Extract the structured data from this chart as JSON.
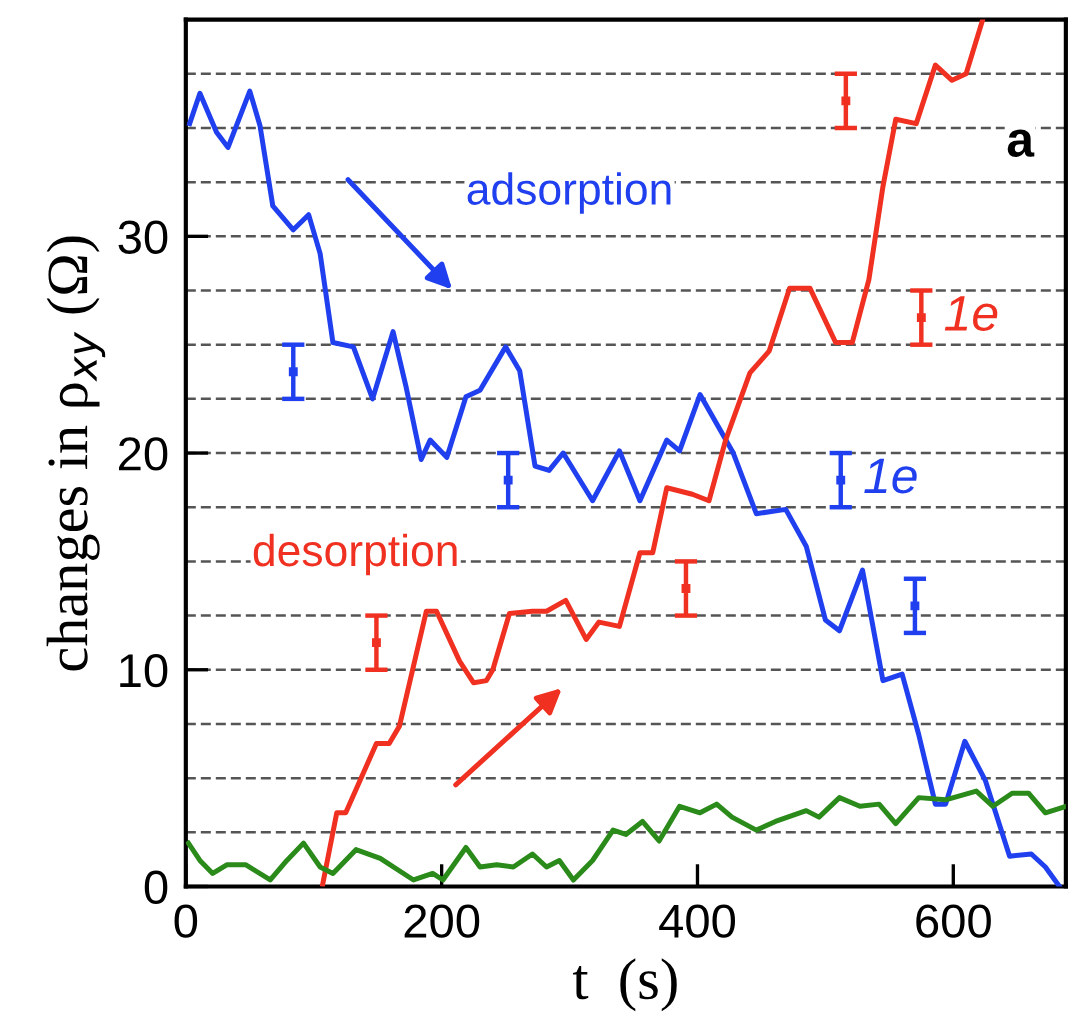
{
  "chart_data": {
    "type": "line",
    "xlabel": "t  (s)",
    "ylabel": "changes in ρ$_{xy}$ (Ω)",
    "xlim": [
      0,
      688
    ],
    "ylim": [
      0,
      40
    ],
    "xticks": [
      0,
      200,
      400,
      600
    ],
    "yticks": [
      0,
      10,
      20,
      30
    ],
    "grid": false,
    "marker": "none",
    "line_style": "solid",
    "series": [
      {
        "color": "#2040f0",
        "x": [
          3,
          11,
          24,
          33,
          50,
          58,
          68,
          84,
          96,
          105,
          115,
          131,
          146,
          162,
          172,
          184,
          191,
          204,
          219,
          230,
          250,
          261,
          273,
          284,
          295,
          318,
          339,
          355,
          376,
          386,
          402,
          428,
          446,
          469,
          485,
          500,
          511,
          529,
          545,
          560,
          573,
          586,
          594,
          609,
          625,
          644,
          661,
          672,
          683
        ],
        "values": [
          35.2,
          36.6,
          34.8,
          34.1,
          36.7,
          35.1,
          31.4,
          30.3,
          31.0,
          29.2,
          25.1,
          24.9,
          22.5,
          25.6,
          23.1,
          19.7,
          20.6,
          19.8,
          22.6,
          22.9,
          24.9,
          23.8,
          19.4,
          19.2,
          20.0,
          17.8,
          20.1,
          17.8,
          20.6,
          20.1,
          22.7,
          20.0,
          17.2,
          17.4,
          15.7,
          12.3,
          11.8,
          14.6,
          9.5,
          9.8,
          7.0,
          3.8,
          3.8,
          6.7,
          4.9,
          1.4,
          1.5,
          0.9,
          0
        ]
      },
      {
        "color": "#f03020",
        "x": [
          107,
          118,
          125,
          149,
          159,
          167,
          188,
          196,
          214,
          225,
          235,
          240,
          253,
          271,
          282,
          297,
          313,
          323,
          339,
          355,
          365,
          376,
          396,
          409,
          422,
          441,
          456,
          472,
          488,
          508,
          521,
          534,
          545,
          555,
          571,
          586,
          599,
          610,
          623
        ],
        "values": [
          0.1,
          3.4,
          3.4,
          6.6,
          6.6,
          7.4,
          12.7,
          12.7,
          10.4,
          9.4,
          9.5,
          10.0,
          12.6,
          12.7,
          12.7,
          13.2,
          11.4,
          12.2,
          12.0,
          15.4,
          15.4,
          18.4,
          18.1,
          17.8,
          20.6,
          23.7,
          24.7,
          27.6,
          27.6,
          25.1,
          25.1,
          28.0,
          32.3,
          35.4,
          35.2,
          37.9,
          37.2,
          37.5,
          40.0
        ]
      },
      {
        "color": "#2a8a1a",
        "x": [
          2,
          11,
          21,
          32,
          47,
          66,
          79,
          92,
          105,
          115,
          133,
          152,
          178,
          193,
          201,
          219,
          230,
          243,
          256,
          271,
          282,
          292,
          303,
          318,
          334,
          344,
          357,
          370,
          386,
          402,
          415,
          427,
          446,
          461,
          485,
          495,
          511,
          527,
          542,
          555,
          573,
          594,
          618,
          631,
          646,
          659,
          672,
          688
        ],
        "values": [
          2.0,
          1.2,
          0.6,
          1.0,
          1.0,
          0.3,
          1.2,
          2.0,
          0.9,
          0.6,
          1.7,
          1.3,
          0.3,
          0.6,
          0.3,
          1.8,
          0.9,
          1.0,
          0.9,
          1.5,
          0.9,
          1.2,
          0.3,
          1.2,
          2.6,
          2.4,
          3.0,
          2.1,
          3.7,
          3.4,
          3.8,
          3.2,
          2.6,
          3.0,
          3.5,
          3.2,
          4.1,
          3.7,
          3.8,
          2.9,
          4.1,
          4.0,
          4.4,
          3.7,
          4.3,
          4.3,
          3.4,
          3.7
        ]
      },
      {
        "type": "scatter",
        "marker": "square",
        "color": "#2040f0",
        "x": [
          84,
          252,
          512,
          570
        ],
        "values": [
          23.75,
          18.75,
          18.75,
          12.95
        ],
        "errors": [
          1.25,
          1.25,
          1.25,
          1.25
        ]
      },
      {
        "type": "scatter",
        "marker": "square",
        "color": "#f03020",
        "x": [
          149,
          391,
          516,
          575
        ],
        "values": [
          11.25,
          13.75,
          36.25,
          26.25
        ],
        "errors": [
          1.25,
          1.25,
          1.25,
          1.25
        ]
      }
    ],
    "ref_lines": [
      {
        "axis": "y",
        "value": 2.5,
        "line_style": "dashed",
        "color": "#555555"
      },
      {
        "axis": "y",
        "value": 5,
        "line_style": "dashed",
        "color": "#555555"
      },
      {
        "axis": "y",
        "value": 7.5,
        "line_style": "dashed",
        "color": "#555555"
      },
      {
        "axis": "y",
        "value": 10,
        "line_style": "dashed",
        "color": "#555555"
      },
      {
        "axis": "y",
        "value": 12.5,
        "line_style": "dashed",
        "color": "#555555"
      },
      {
        "axis": "y",
        "value": 15,
        "line_style": "dashed",
        "color": "#555555"
      },
      {
        "axis": "y",
        "value": 17.5,
        "line_style": "dashed",
        "color": "#555555"
      },
      {
        "axis": "y",
        "value": 20,
        "line_style": "dashed",
        "color": "#555555"
      },
      {
        "axis": "y",
        "value": 22.5,
        "line_style": "dashed",
        "color": "#555555"
      },
      {
        "axis": "y",
        "value": 25,
        "line_style": "dashed",
        "color": "#555555"
      },
      {
        "axis": "y",
        "value": 27.5,
        "line_style": "dashed",
        "color": "#555555"
      },
      {
        "axis": "y",
        "value": 30,
        "line_style": "dashed",
        "color": "#555555"
      },
      {
        "axis": "y",
        "value": 32.5,
        "line_style": "dashed",
        "color": "#555555"
      },
      {
        "axis": "y",
        "value": 35,
        "line_style": "dashed",
        "color": "#555555"
      },
      {
        "axis": "y",
        "value": 37.5,
        "line_style": "dashed",
        "color": "#555555"
      }
    ],
    "annotations": [
      "adsorption",
      "desorption",
      "a",
      {
        "text": "1e",
        "x": 575,
        "y": 26.25
      },
      {
        "text": "1e",
        "x": 512,
        "y": 18.75
      }
    ]
  }
}
